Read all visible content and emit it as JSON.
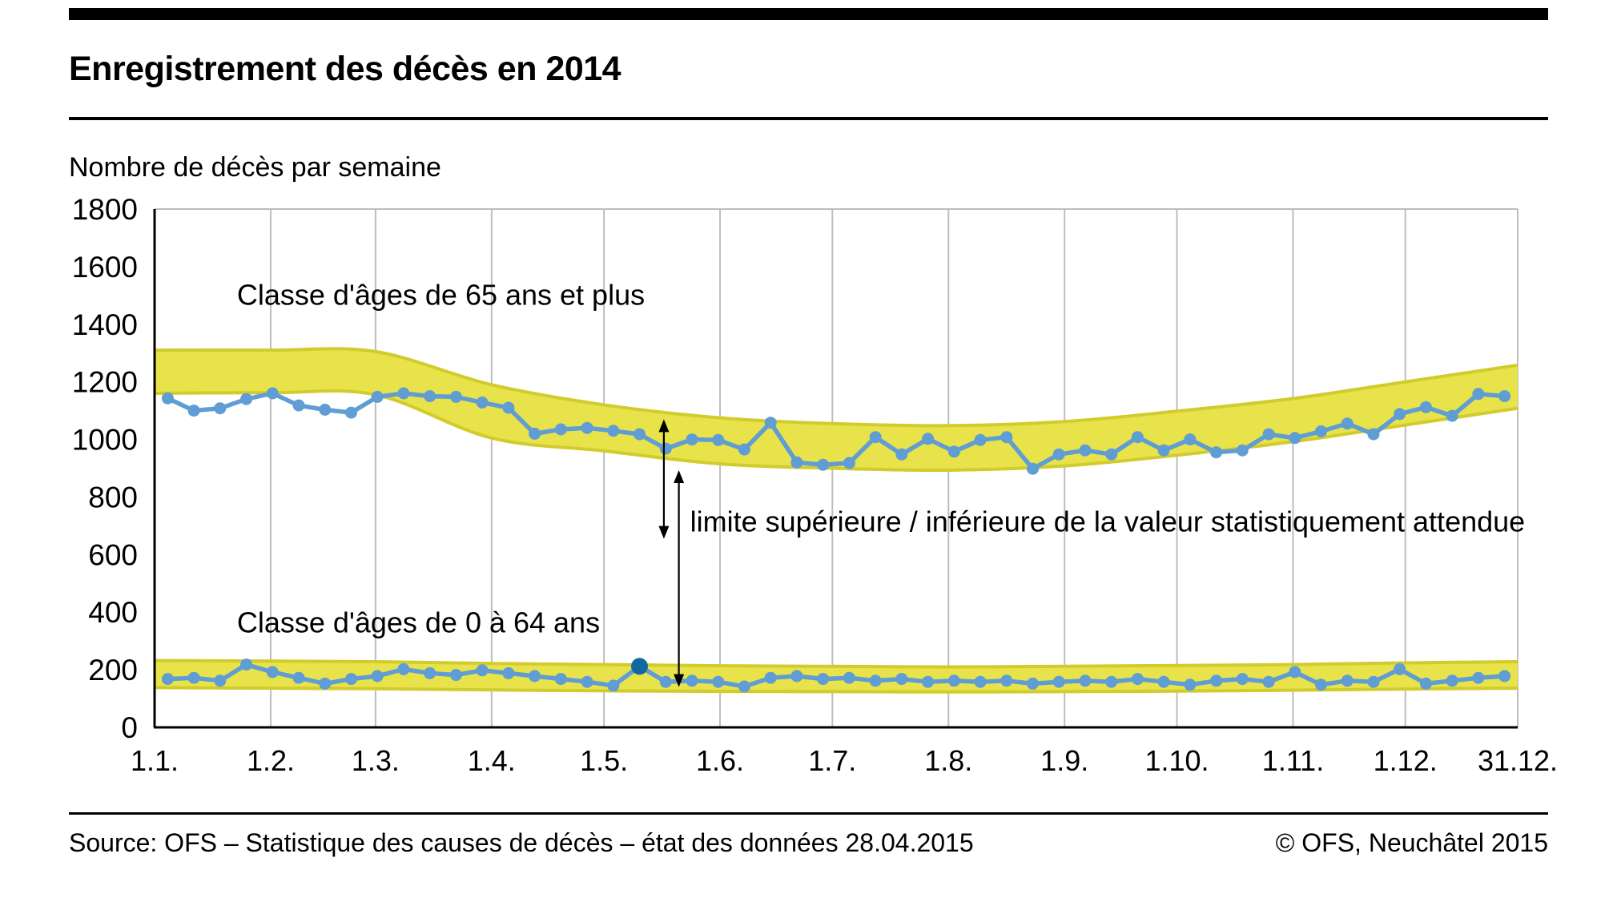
{
  "header": {
    "title": "Enregistrement des décès en 2014",
    "subtitle": "Nombre de décès par semaine"
  },
  "footer": {
    "source": "Source: OFS – Statistique des causes de décès – état des données 28.04.2015",
    "copyright": "© OFS, Neuchâtel 2015"
  },
  "chart_data": {
    "type": "line",
    "title": "Enregistrement des décès en 2014",
    "ylabel": "Nombre de décès par semaine",
    "xlabel": "",
    "ylim": [
      0,
      1800
    ],
    "yticks": [
      0,
      200,
      400,
      600,
      800,
      1000,
      1200,
      1400,
      1600,
      1800
    ],
    "xtick_labels": [
      "1.1.",
      "1.2.",
      "1.3.",
      "1.4.",
      "1.5.",
      "1.6.",
      "1.7.",
      "1.8.",
      "1.9.",
      "1.10.",
      "1.11.",
      "1.12.",
      "31.12."
    ],
    "xtick_days": [
      0,
      31,
      59,
      90,
      120,
      151,
      181,
      212,
      243,
      273,
      304,
      334,
      364
    ],
    "x_range_days": [
      0,
      364
    ],
    "week_day_offset": 3.5,
    "grid": "vertical-monthly",
    "legend_position": "inline-labels",
    "annotation": "limite supérieure / inférieure de la valeur statistiquement attendue",
    "series": [
      {
        "name": "Classe d'âges de 65 ans et plus",
        "values": [
          1143,
          1100,
          1108,
          1140,
          1160,
          1118,
          1103,
          1093,
          1148,
          1160,
          1150,
          1148,
          1128,
          1110,
          1020,
          1035,
          1040,
          1030,
          1018,
          968,
          1000,
          998,
          965,
          1058,
          920,
          912,
          918,
          1008,
          948,
          1002,
          958,
          998,
          1008,
          898,
          948,
          962,
          948,
          1008,
          962,
          1000,
          955,
          962,
          1018,
          1005,
          1028,
          1055,
          1018,
          1088,
          1112,
          1082,
          1158,
          1150
        ]
      },
      {
        "name": "Classe d'âges de 0 à 64 ans",
        "values": [
          168,
          172,
          162,
          218,
          192,
          172,
          152,
          168,
          178,
          202,
          188,
          182,
          198,
          188,
          178,
          168,
          158,
          145,
          212,
          158,
          162,
          158,
          142,
          172,
          178,
          168,
          172,
          162,
          168,
          158,
          162,
          158,
          162,
          152,
          158,
          162,
          158,
          168,
          158,
          148,
          162,
          168,
          158,
          192,
          148,
          162,
          158,
          202,
          152,
          162,
          172,
          178
        ],
        "highlight_index": 18,
        "highlight_value": 212
      }
    ],
    "bands": [
      {
        "name": "limites statistiques 65 ans et plus",
        "x_days": [
          0,
          31,
          59,
          90,
          120,
          151,
          181,
          212,
          243,
          273,
          304,
          334,
          364
        ],
        "upper": [
          1310,
          1310,
          1305,
          1190,
          1120,
          1075,
          1055,
          1048,
          1062,
          1098,
          1142,
          1200,
          1258
        ],
        "lower": [
          1160,
          1162,
          1155,
          1005,
          960,
          915,
          900,
          893,
          908,
          945,
          992,
          1050,
          1108
        ]
      },
      {
        "name": "limites statistiques 0 à 64 ans",
        "x_days": [
          0,
          31,
          59,
          90,
          120,
          151,
          181,
          212,
          243,
          273,
          304,
          334,
          364
        ],
        "upper": [
          232,
          230,
          228,
          222,
          218,
          214,
          212,
          210,
          212,
          215,
          218,
          224,
          228
        ],
        "lower": [
          138,
          136,
          134,
          130,
          127,
          125,
          124,
          123,
          124,
          126,
          129,
          133,
          136
        ]
      }
    ],
    "colors": {
      "series_line": "#5f9dd4",
      "highlight_point": "#13699f",
      "band_fill": "#e8e24b",
      "band_edge": "#d2cb2c",
      "gridline": "#bdbdbd",
      "axis": "#000000"
    }
  }
}
